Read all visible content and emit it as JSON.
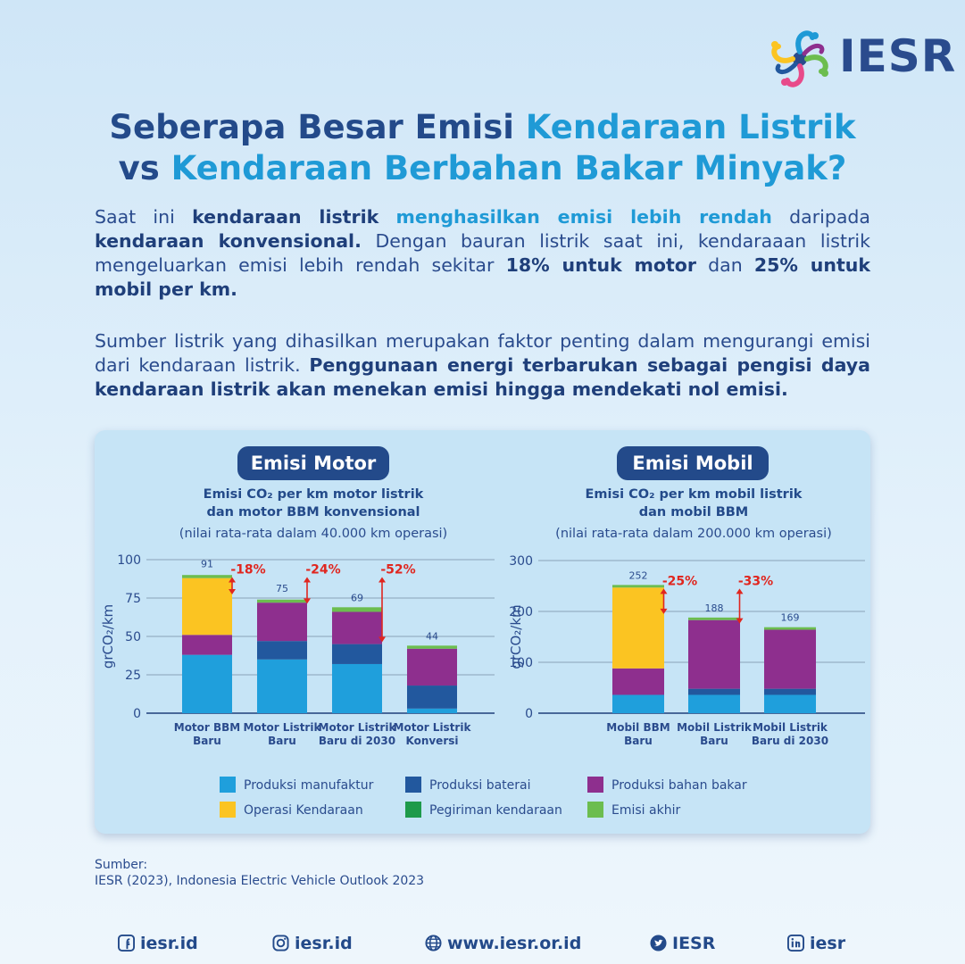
{
  "brand": {
    "name": "IESR"
  },
  "title": {
    "line1_a": "Seberapa Besar Emisi ",
    "line1_b": "Kendaraan Listrik",
    "line2_a": "vs ",
    "line2_b": "Kendaraan Berbahan Bakar Minyak?"
  },
  "intro": {
    "p1_a": "Saat ini ",
    "p1_b": "kendaraan listrik",
    "p1_c": " ",
    "p1_d": "menghasilkan emisi lebih rendah",
    "p1_e": " daripada ",
    "p1_f": "kendaraan konvensional.",
    "p1_g": " Dengan bauran listrik saat ini, kendaraaan listrik mengeluarkan emisi lebih rendah sekitar ",
    "p1_h": "18% untuk motor",
    "p1_i": " dan ",
    "p1_j": "25% untuk mobil per km.",
    "p2_a": "Sumber listrik yang dihasilkan merupakan faktor penting dalam mengurangi emisi dari kendaraan listrik. ",
    "p2_b": "Penggunaan energi terbarukan sebagai pengisi daya kendaraan listrik akan menekan emisi hingga mendekati nol emisi."
  },
  "colors": {
    "manufaktur": "#1f9fdc",
    "baterai": "#22589e",
    "bahan_bakar": "#8e2f8e",
    "operasi": "#fbc422",
    "pengiriman": "#1e9a4a",
    "akhir": "#6cbd4f",
    "reduction": "#e0261f"
  },
  "chart_data": [
    {
      "type": "bar",
      "stacked": true,
      "panel_title": "Emisi Motor",
      "title": "Emisi CO₂ per km motor listrik dan motor BBM konvensional",
      "title_line1": "Emisi CO₂ per km motor listrik",
      "title_line2": "dan motor BBM konvensional",
      "subtitle": "(nilai rata-rata dalam 40.000 km operasi)",
      "ylabel": "grCO₂/km",
      "ylim": [
        0,
        100
      ],
      "yticks": [
        0,
        25,
        50,
        75,
        100
      ],
      "categories": [
        [
          "Motor BBM",
          "Baru"
        ],
        [
          "Motor Listrik",
          "Baru"
        ],
        [
          "Motor Listrik",
          "Baru di 2030"
        ],
        [
          "Motor Listrik",
          "Konversi"
        ]
      ],
      "totals": [
        91,
        75,
        69,
        44
      ],
      "series": [
        {
          "name": "Produksi manufaktur",
          "key": "manufaktur",
          "values": [
            38,
            35,
            32,
            3
          ]
        },
        {
          "name": "Produksi baterai",
          "key": "baterai",
          "values": [
            0,
            12,
            13,
            15
          ]
        },
        {
          "name": "Produksi bahan bakar",
          "key": "bahan_bakar",
          "values": [
            13,
            25,
            21,
            24
          ]
        },
        {
          "name": "Operasi Kendaraan",
          "key": "operasi",
          "values": [
            37,
            0,
            0,
            0
          ]
        },
        {
          "name": "Pengiriman kendaraan",
          "key": "pengiriman",
          "values": [
            0,
            0,
            0,
            0
          ]
        },
        {
          "name": "Emisi akhir",
          "key": "akhir",
          "values": [
            2,
            2,
            3,
            2
          ]
        }
      ],
      "reductions": [
        {
          "label": "-18%",
          "from": 0,
          "to": 1
        },
        {
          "label": "-24%",
          "from": 0,
          "to": 2
        },
        {
          "label": "-52%",
          "from": 0,
          "to": 3
        }
      ]
    },
    {
      "type": "bar",
      "stacked": true,
      "panel_title": "Emisi Mobil",
      "title": "Emisi CO₂ per km mobil listrik dan mobil BBM",
      "title_line1": "Emisi CO₂ per km mobil listrik",
      "title_line2": "dan mobil BBM",
      "subtitle": "(nilai rata-rata dalam 200.000 km operasi)",
      "ylabel": "grCO₂/km",
      "ylim": [
        0,
        300
      ],
      "yticks": [
        0,
        100,
        200,
        300
      ],
      "categories": [
        [
          "Mobil BBM",
          "Baru"
        ],
        [
          "Mobil Listrik",
          "Baru"
        ],
        [
          "Mobil Listrik",
          "Baru di 2030"
        ]
      ],
      "totals": [
        252,
        188,
        169
      ],
      "series": [
        {
          "name": "Produksi manufaktur",
          "key": "manufaktur",
          "values": [
            36,
            36,
            36
          ]
        },
        {
          "name": "Produksi baterai",
          "key": "baterai",
          "values": [
            0,
            12,
            12
          ]
        },
        {
          "name": "Produksi bahan bakar",
          "key": "bahan_bakar",
          "values": [
            52,
            135,
            116
          ]
        },
        {
          "name": "Operasi Kendaraan",
          "key": "operasi",
          "values": [
            159,
            0,
            0
          ]
        },
        {
          "name": "Pengiriman kendaraan",
          "key": "pengiriman",
          "values": [
            0,
            0,
            0
          ]
        },
        {
          "name": "Emisi akhir",
          "key": "akhir",
          "values": [
            5,
            5,
            5
          ]
        }
      ],
      "reductions": [
        {
          "label": "-25%",
          "from": 0,
          "to": 1
        },
        {
          "label": "-33%",
          "from": 0,
          "to": 2
        }
      ]
    }
  ],
  "legend": [
    {
      "label": "Produksi manufaktur",
      "key": "manufaktur"
    },
    {
      "label": "Produksi baterai",
      "key": "baterai"
    },
    {
      "label": "Produksi bahan bakar",
      "key": "bahan_bakar"
    },
    {
      "label": "Operasi Kendaraan",
      "key": "operasi"
    },
    {
      "label": "Pegiriman kendaraan",
      "key": "pengiriman"
    },
    {
      "label": "Emisi akhir",
      "key": "akhir"
    }
  ],
  "source": {
    "label": "Sumber:",
    "text": "IESR (2023), Indonesia Electric Vehicle Outlook 2023"
  },
  "footer": [
    {
      "label": "iesr.id",
      "icon": "facebook-icon"
    },
    {
      "label": "iesr.id",
      "icon": "instagram-icon"
    },
    {
      "label": "www.iesr.or.id",
      "icon": "globe-icon"
    },
    {
      "label": "IESR",
      "icon": "twitter-icon"
    },
    {
      "label": "iesr",
      "icon": "linkedin-icon"
    }
  ]
}
